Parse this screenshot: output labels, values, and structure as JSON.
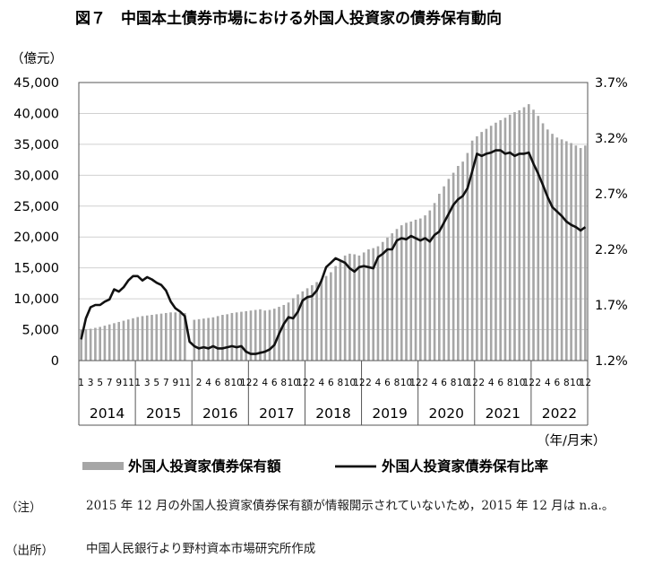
{
  "chart_data": {
    "type": "bar+line",
    "title": "図７　中国本土債券市場における外国人投資家の債券保有動向",
    "y_left_label": "（億元）",
    "y_left_ticks": [
      "45,000",
      "40,000",
      "35,000",
      "30,000",
      "25,000",
      "20,000",
      "15,000",
      "10,000",
      "5,000",
      "0"
    ],
    "y_left_range": [
      0,
      45000
    ],
    "y_right_ticks": [
      "3.7%",
      "3.2%",
      "2.7%",
      "2.2%",
      "1.7%",
      "1.2%"
    ],
    "y_right_range": [
      1.2,
      3.7
    ],
    "x_label": "（年/月末）",
    "years": [
      "2014",
      "2015",
      "2016",
      "2017",
      "2018",
      "2019",
      "2020",
      "2021",
      "2022"
    ],
    "month_ticks": [
      [
        "1",
        "3",
        "5",
        "7",
        "9",
        "11"
      ],
      [
        "1",
        "3",
        "5",
        "7",
        "9",
        "11"
      ],
      [
        "2",
        "4",
        "6",
        "8",
        "10",
        "12"
      ],
      [
        "2",
        "4",
        "6",
        "8",
        "10",
        "12"
      ],
      [
        "2",
        "4",
        "6",
        "8",
        "10",
        "12"
      ],
      [
        "2",
        "4",
        "6",
        "8",
        "10",
        "12"
      ],
      [
        "2",
        "4",
        "6",
        "8",
        "10",
        "12"
      ],
      [
        "2",
        "4",
        "6",
        "8",
        "10",
        "12"
      ],
      [
        "2",
        "4",
        "6",
        "8",
        "10",
        "12"
      ]
    ],
    "grid": true,
    "legend_position": "bottom",
    "series": [
      {
        "name": "外国人投資家債券保有額",
        "kind": "bar",
        "color": "#a6a6a6",
        "values": [
          5000,
          5050,
          5150,
          5300,
          5450,
          5650,
          5850,
          6050,
          6250,
          6450,
          6650,
          6850,
          7050,
          7200,
          7300,
          7400,
          7500,
          7600,
          7700,
          7800,
          7800,
          7700,
          7700,
          null,
          6600,
          6700,
          6800,
          6900,
          7000,
          7200,
          7400,
          7500,
          7700,
          7800,
          7900,
          8000,
          8100,
          8200,
          8300,
          8100,
          8200,
          8400,
          8700,
          9000,
          9400,
          10100,
          10700,
          11200,
          11700,
          12200,
          12700,
          13200,
          13700,
          14300,
          15300,
          16200,
          17000,
          17300,
          17200,
          17000,
          17500,
          18000,
          18200,
          18500,
          19200,
          19900,
          20600,
          21300,
          21900,
          22300,
          22500,
          22800,
          23000,
          23500,
          24300,
          25500,
          27000,
          28200,
          29400,
          30400,
          31500,
          32200,
          33600,
          35600,
          36300,
          37000,
          37500,
          38000,
          38500,
          38900,
          39300,
          39800,
          40200,
          40500,
          41000,
          41500,
          40600,
          39600,
          38400,
          37400,
          36700,
          36100,
          35800,
          35500,
          35200,
          34800,
          34400,
          34800
        ]
      },
      {
        "name": "外国人投資家債券保有比率",
        "kind": "line",
        "color": "#111111",
        "values": [
          1.39,
          1.58,
          1.68,
          1.7,
          1.7,
          1.73,
          1.75,
          1.84,
          1.82,
          1.86,
          1.92,
          1.96,
          1.96,
          1.92,
          1.95,
          1.93,
          1.9,
          1.88,
          1.83,
          1.73,
          1.67,
          1.64,
          1.6,
          1.37,
          1.33,
          1.31,
          1.32,
          1.31,
          1.33,
          1.31,
          1.31,
          1.32,
          1.33,
          1.32,
          1.33,
          1.28,
          1.26,
          1.26,
          1.27,
          1.28,
          1.3,
          1.34,
          1.44,
          1.53,
          1.59,
          1.58,
          1.64,
          1.74,
          1.77,
          1.78,
          1.83,
          1.92,
          2.04,
          2.08,
          2.12,
          2.1,
          2.08,
          2.03,
          2.0,
          2.04,
          2.05,
          2.04,
          2.03,
          2.13,
          2.16,
          2.2,
          2.2,
          2.28,
          2.3,
          2.29,
          2.32,
          2.3,
          2.28,
          2.3,
          2.27,
          2.33,
          2.36,
          2.44,
          2.52,
          2.6,
          2.65,
          2.68,
          2.75,
          2.9,
          3.06,
          3.04,
          3.06,
          3.07,
          3.09,
          3.09,
          3.06,
          3.07,
          3.04,
          3.06,
          3.06,
          3.07,
          2.97,
          2.88,
          2.78,
          2.67,
          2.58,
          2.54,
          2.5,
          2.45,
          2.42,
          2.4,
          2.37,
          2.4
        ]
      }
    ]
  },
  "notes": [
    {
      "label": "（注）",
      "text": "2015 年 12 月の外国人投資家債券保有額が情報開示されていないため，2015 年 12 月は n.a.。"
    },
    {
      "label": "（出所）",
      "text": "中国人民銀行より野村資本市場研究所作成"
    }
  ]
}
